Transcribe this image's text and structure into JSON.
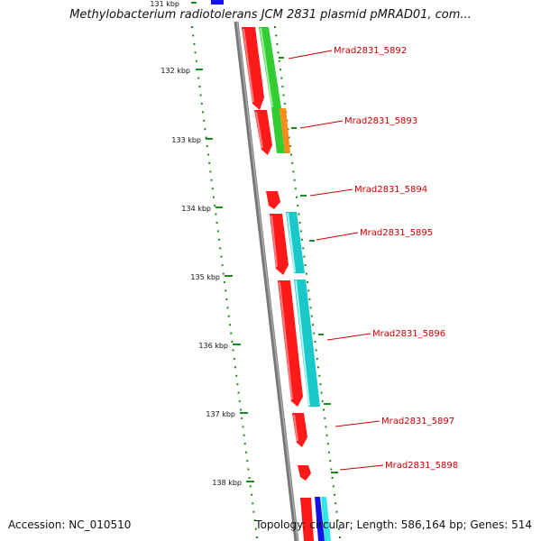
{
  "title": "Methylobacterium radiotolerans JCM 2831 plasmid pMRAD01, com...",
  "footer": {
    "accession": "Accession: NC_010510",
    "topology": "Topology: circular; Length: 586,164 bp; Genes: 514"
  },
  "colors": {
    "minus_strand": "#ff1a1a",
    "plus_green": "#33cc33",
    "plus_orange": "#ff8c1a",
    "plus_cyan": "#19c8c8",
    "plus_blue": "#1414e6",
    "backbone": "#888888",
    "ruler_dots": "#1a8c1a",
    "label_text": "#cc0000"
  },
  "ruler": {
    "ticks": [
      "131 kbp",
      "132 kbp",
      "133 kbp",
      "134 kbp",
      "135 kbp",
      "136 kbp",
      "137 kbp",
      "138 kbp"
    ]
  },
  "gene_labels": [
    "Mrad2831_5892",
    "Mrad2831_5893",
    "Mrad2831_5894",
    "Mrad2831_5895",
    "Mrad2831_5896",
    "Mrad2831_5897",
    "Mrad2831_5898"
  ]
}
